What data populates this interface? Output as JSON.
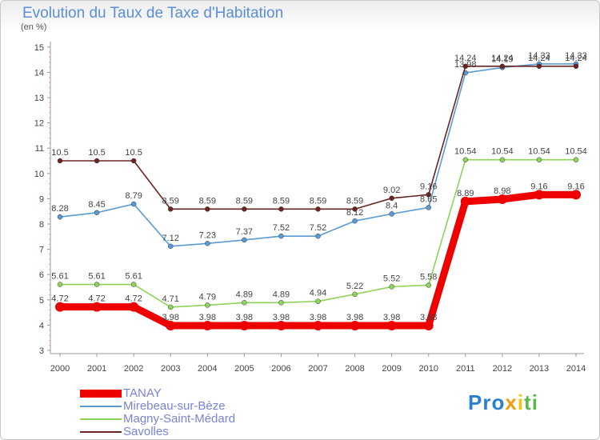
{
  "title": "Evolution du Taux de Taxe d'Habitation",
  "subtitle": "(en %)",
  "logo": {
    "text": "Proxiti"
  },
  "chart_data": {
    "type": "line",
    "title": "Evolution du Taux de Taxe d'Habitation",
    "ylabel": "(en %)",
    "xlabel": "",
    "ylim": [
      3,
      15
    ],
    "yticks": [
      3,
      4,
      5,
      6,
      7,
      8,
      9,
      10,
      11,
      12,
      13,
      14,
      15
    ],
    "grid": false,
    "legend_position": "bottom",
    "x": [
      "2000",
      "2001",
      "2002",
      "2003",
      "2004",
      "2005",
      "2006",
      "2007",
      "2008",
      "2009",
      "2010",
      "2011",
      "2012",
      "2013",
      "2014"
    ],
    "series": [
      {
        "name": "TANAY",
        "color": "#ee0000",
        "values": [
          4.72,
          4.72,
          4.72,
          3.98,
          3.98,
          3.98,
          3.98,
          3.98,
          3.98,
          3.98,
          3.98,
          8.89,
          8.98,
          9.16,
          9.16
        ],
        "labels": [
          "4.72",
          "4.72",
          "4.72",
          "3.98",
          "3.98",
          "3.98",
          "3.98",
          "3.98",
          "3.98",
          "3.98",
          "3.98",
          "8.89",
          "8.98",
          "9.16",
          "9.16"
        ]
      },
      {
        "name": "Mirebeau-sur-Bèze",
        "color": "#5b9bd5",
        "values": [
          8.28,
          8.45,
          8.79,
          7.12,
          7.23,
          7.37,
          7.52,
          7.52,
          8.12,
          8.4,
          8.65,
          13.98,
          14.19,
          14.33,
          14.33
        ],
        "labels": [
          "8.28",
          "8.45",
          "8.79",
          "7.12",
          "7.23",
          "7.37",
          "7.52",
          "7.52",
          "8.12",
          "8.4",
          "8.65",
          "13.98",
          "14.19",
          "14.33",
          "14.33"
        ]
      },
      {
        "name": "Magny-Saint-Médard",
        "color": "#8ed45a",
        "values": [
          5.61,
          5.61,
          5.61,
          4.71,
          4.79,
          4.89,
          4.89,
          4.94,
          5.22,
          5.52,
          5.58,
          10.54,
          10.54,
          10.54,
          10.54
        ],
        "labels": [
          "5.61",
          "5.61",
          "5.61",
          "4.71",
          "4.79",
          "4.89",
          "4.89",
          "4.94",
          "5.22",
          "5.52",
          "5.58",
          "10.54",
          "10.54",
          "10.54",
          "10.54"
        ]
      },
      {
        "name": "Savolles",
        "color": "#6b2424",
        "values": [
          10.5,
          10.5,
          10.5,
          8.59,
          8.59,
          8.59,
          8.59,
          8.59,
          8.59,
          9.02,
          9.16,
          14.24,
          14.24,
          14.24,
          14.24
        ],
        "labels": [
          "10.5",
          "10.5",
          "10.5",
          "8.59",
          "8.59",
          "8.59",
          "8.59",
          "8.59",
          "8.59",
          "9.02",
          "9.16",
          "14.24",
          "14.24",
          "14.24",
          "14.24"
        ]
      }
    ]
  }
}
